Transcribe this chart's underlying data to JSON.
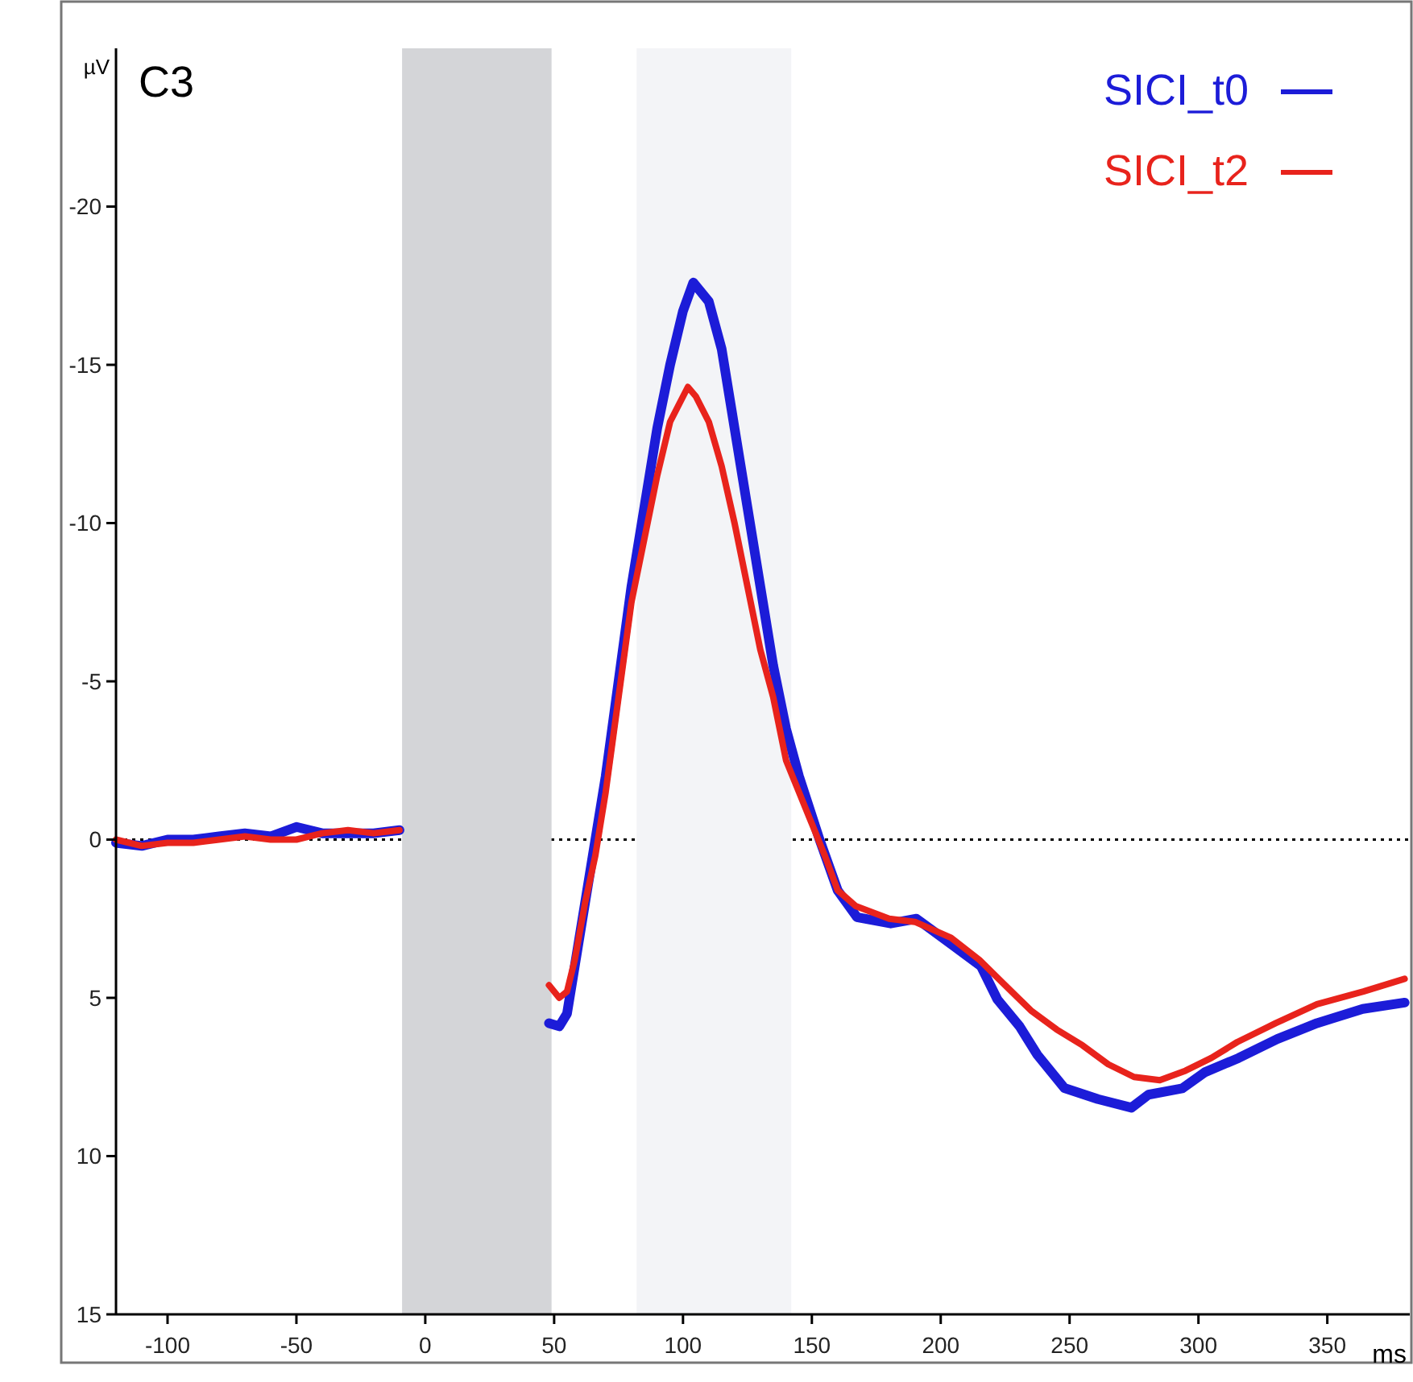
{
  "chart_data": {
    "type": "line",
    "title": "C3",
    "xlabel": "ms",
    "ylabel": "µV",
    "xlim": [
      -120,
      382
    ],
    "xticks": [
      -100,
      -50,
      0,
      50,
      100,
      150,
      200,
      250,
      300,
      350
    ],
    "ylim": [
      15,
      -25
    ],
    "yticks": [
      -20,
      -15,
      -10,
      -5,
      0,
      5,
      10,
      15
    ],
    "legend": "top right",
    "line_style": "solid",
    "marker": "none",
    "grid": false,
    "bands": [
      {
        "axis": "x",
        "from": -9,
        "to": 49,
        "color": "#d4d5d8"
      },
      {
        "axis": "x",
        "from": 82,
        "to": 142,
        "color": "#f3f4f7"
      }
    ],
    "ref_lines": [
      {
        "axis": "y",
        "value": 0,
        "line_style": "dotted",
        "color": "#000000"
      }
    ],
    "series": [
      {
        "name": "SICI_t0",
        "color": "#1c1cd8",
        "x": [
          -120,
          -110,
          -100,
          -90,
          -80,
          -70,
          -60,
          -50,
          -40,
          -30,
          -20,
          -10,
          0,
          48,
          52,
          55,
          58,
          62,
          66,
          70,
          75,
          80,
          85,
          90,
          95,
          100,
          104,
          110,
          115,
          120,
          125,
          130,
          135,
          140,
          145,
          153,
          160,
          167.5,
          180.6,
          190.6,
          204,
          215.6,
          222,
          230.6,
          237.5,
          248,
          261,
          274,
          280.6,
          293.75,
          302.5,
          315.6,
          330.6,
          346,
          363.75,
          380
        ],
        "values": [
          0.1,
          0.2,
          0,
          0,
          -0.1,
          -0.2,
          -0.1,
          -0.4,
          -0.2,
          -0.2,
          -0.2,
          -0.3,
          null,
          5.8,
          5.9,
          5.5,
          4,
          2,
          0,
          -2,
          -5,
          -8,
          -10.5,
          -13,
          -15,
          -16.7,
          -17.6,
          -17,
          -15.5,
          -13,
          -10.5,
          -8,
          -5.5,
          -3.5,
          -2,
          0,
          1.6,
          2.45,
          2.65,
          2.5,
          3.3,
          4,
          5.05,
          5.9,
          6.8,
          7.85,
          8.2,
          8.47,
          8.06,
          7.86,
          7.35,
          6.9,
          6.3,
          5.8,
          5.35,
          5.15
        ]
      },
      {
        "name": "SICI_t2",
        "color": "#e8231c",
        "x": [
          -120,
          -110,
          -100,
          -90,
          -80,
          -70,
          -60,
          -50,
          -40,
          -30,
          -20,
          -10,
          0,
          48,
          52,
          55,
          58,
          62,
          66,
          70,
          75,
          80,
          85,
          90,
          95,
          101.9,
          105,
          110,
          115,
          120,
          125,
          130,
          135,
          140,
          145,
          150,
          155,
          160,
          167,
          180,
          190,
          204,
          215,
          225,
          235,
          245,
          255,
          265,
          275,
          285,
          295,
          305,
          315,
          330,
          346,
          364,
          380
        ],
        "values": [
          0,
          0.2,
          0.1,
          0.1,
          0,
          -0.1,
          0,
          0,
          -0.2,
          -0.3,
          -0.2,
          -0.3,
          null,
          4.6,
          5,
          4.8,
          3.8,
          2,
          0.5,
          -1.5,
          -4.5,
          -7.5,
          -9.5,
          -11.5,
          -13.2,
          -14.3,
          -14,
          -13.2,
          -11.8,
          -10,
          -8,
          -6,
          -4.5,
          -2.5,
          -1.5,
          -0.5,
          0.5,
          1.6,
          2.1,
          2.5,
          2.6,
          3.1,
          3.8,
          4.6,
          5.4,
          6,
          6.5,
          7.1,
          7.5,
          7.6,
          7.3,
          6.9,
          6.4,
          5.8,
          5.2,
          4.8,
          4.4
        ]
      }
    ]
  }
}
